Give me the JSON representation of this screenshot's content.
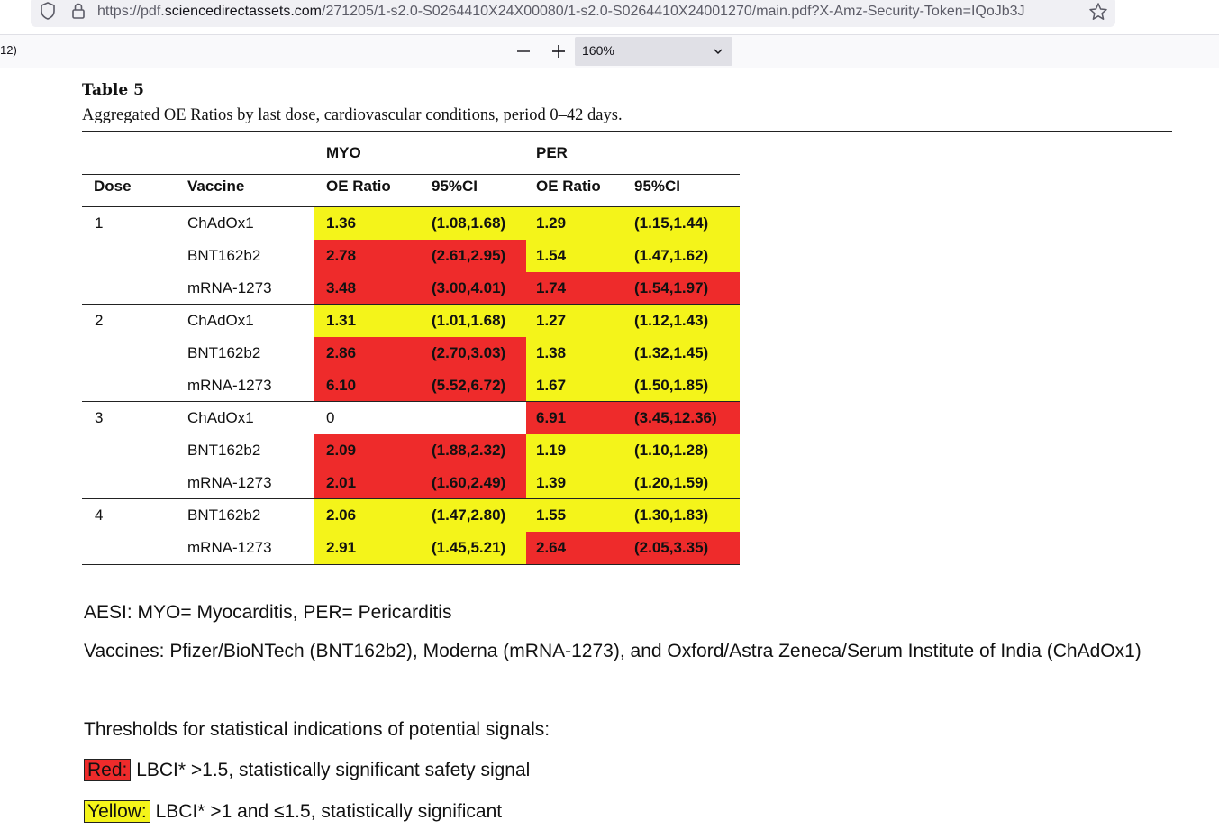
{
  "browser": {
    "url_prefix": "https://pdf.",
    "url_domain": "sciencedirectassets.com",
    "url_path": "/271205/1-s2.0-S0264410X24X00080/1-s2.0-S0264410X24001270/main.pdf?X-Amz-Security-Token=IQoJb3J",
    "page_indicator": "12)",
    "zoom_value": "160%",
    "zoom_out_label": "—",
    "zoom_in_label": "+"
  },
  "document": {
    "table_label": "Table 5",
    "caption": "Aggregated OE Ratios by last dose, cardiovascular conditions, period 0–42 days.",
    "group_headers": {
      "myo": "MYO",
      "per": "PER"
    },
    "columns": {
      "dose": "Dose",
      "vaccine": "Vaccine",
      "myo_oe": "OE Ratio",
      "myo_ci": "95%CI",
      "per_oe": "OE Ratio",
      "per_ci": "95%CI"
    },
    "rows": [
      {
        "dose": "1",
        "vaccine": "ChAdOx1",
        "myo_oe": "1.36",
        "myo_ci": "(1.08,1.68)",
        "per_oe": "1.29",
        "per_ci": "(1.15,1.44)",
        "myo_color": "yellow",
        "per_color": "yellow"
      },
      {
        "dose": "",
        "vaccine": "BNT162b2",
        "myo_oe": "2.78",
        "myo_ci": "(2.61,2.95)",
        "per_oe": "1.54",
        "per_ci": "(1.47,1.62)",
        "myo_color": "red",
        "per_color": "yellow"
      },
      {
        "dose": "",
        "vaccine": "mRNA-1273",
        "myo_oe": "3.48",
        "myo_ci": "(3.00,4.01)",
        "per_oe": "1.74",
        "per_ci": "(1.54,1.97)",
        "myo_color": "red",
        "per_color": "red"
      },
      {
        "dose": "2",
        "vaccine": "ChAdOx1",
        "myo_oe": "1.31",
        "myo_ci": "(1.01,1.68)",
        "per_oe": "1.27",
        "per_ci": "(1.12,1.43)",
        "myo_color": "yellow",
        "per_color": "yellow"
      },
      {
        "dose": "",
        "vaccine": "BNT162b2",
        "myo_oe": "2.86",
        "myo_ci": "(2.70,3.03)",
        "per_oe": "1.38",
        "per_ci": "(1.32,1.45)",
        "myo_color": "red",
        "per_color": "yellow"
      },
      {
        "dose": "",
        "vaccine": "mRNA-1273",
        "myo_oe": "6.10",
        "myo_ci": "(5.52,6.72)",
        "per_oe": "1.67",
        "per_ci": "(1.50,1.85)",
        "myo_color": "red",
        "per_color": "yellow"
      },
      {
        "dose": "3",
        "vaccine": "ChAdOx1",
        "myo_oe": "0",
        "myo_ci": "",
        "per_oe": "6.91",
        "per_ci": "(3.45,12.36)",
        "myo_color": "none",
        "per_color": "red"
      },
      {
        "dose": "",
        "vaccine": "BNT162b2",
        "myo_oe": "2.09",
        "myo_ci": "(1.88,2.32)",
        "per_oe": "1.19",
        "per_ci": "(1.10,1.28)",
        "myo_color": "red",
        "per_color": "yellow"
      },
      {
        "dose": "",
        "vaccine": "mRNA-1273",
        "myo_oe": "2.01",
        "myo_ci": "(1.60,2.49)",
        "per_oe": "1.39",
        "per_ci": "(1.20,1.59)",
        "myo_color": "red",
        "per_color": "yellow"
      },
      {
        "dose": "4",
        "vaccine": "BNT162b2",
        "myo_oe": "2.06",
        "myo_ci": "(1.47,2.80)",
        "per_oe": "1.55",
        "per_ci": "(1.30,1.83)",
        "myo_color": "yellow",
        "per_color": "yellow"
      },
      {
        "dose": "",
        "vaccine": "mRNA-1273",
        "myo_oe": "2.91",
        "myo_ci": "(1.45,5.21)",
        "per_oe": "2.64",
        "per_ci": "(2.05,3.35)",
        "myo_color": "yellow",
        "per_color": "red"
      }
    ],
    "colors": {
      "red": "#ee2b2b",
      "yellow": "#f4f41a"
    },
    "footnotes": {
      "aesi": "AESI: MYO= Myocarditis, PER= Pericarditis",
      "vaccines": "Vaccines: Pfizer/BioNTech (BNT162b2), Moderna (mRNA-1273), and Oxford/Astra Zeneca/Serum Institute of India (ChAdOx1)",
      "thresholds": "Thresholds for statistical indications of potential signals:",
      "red_label": "Red:",
      "red_text": " LBCI* >1.5, statistically significant safety signal",
      "yellow_label": "Yellow:",
      "yellow_text": " LBCI* >1 and ≤1.5, statistically significant"
    }
  }
}
